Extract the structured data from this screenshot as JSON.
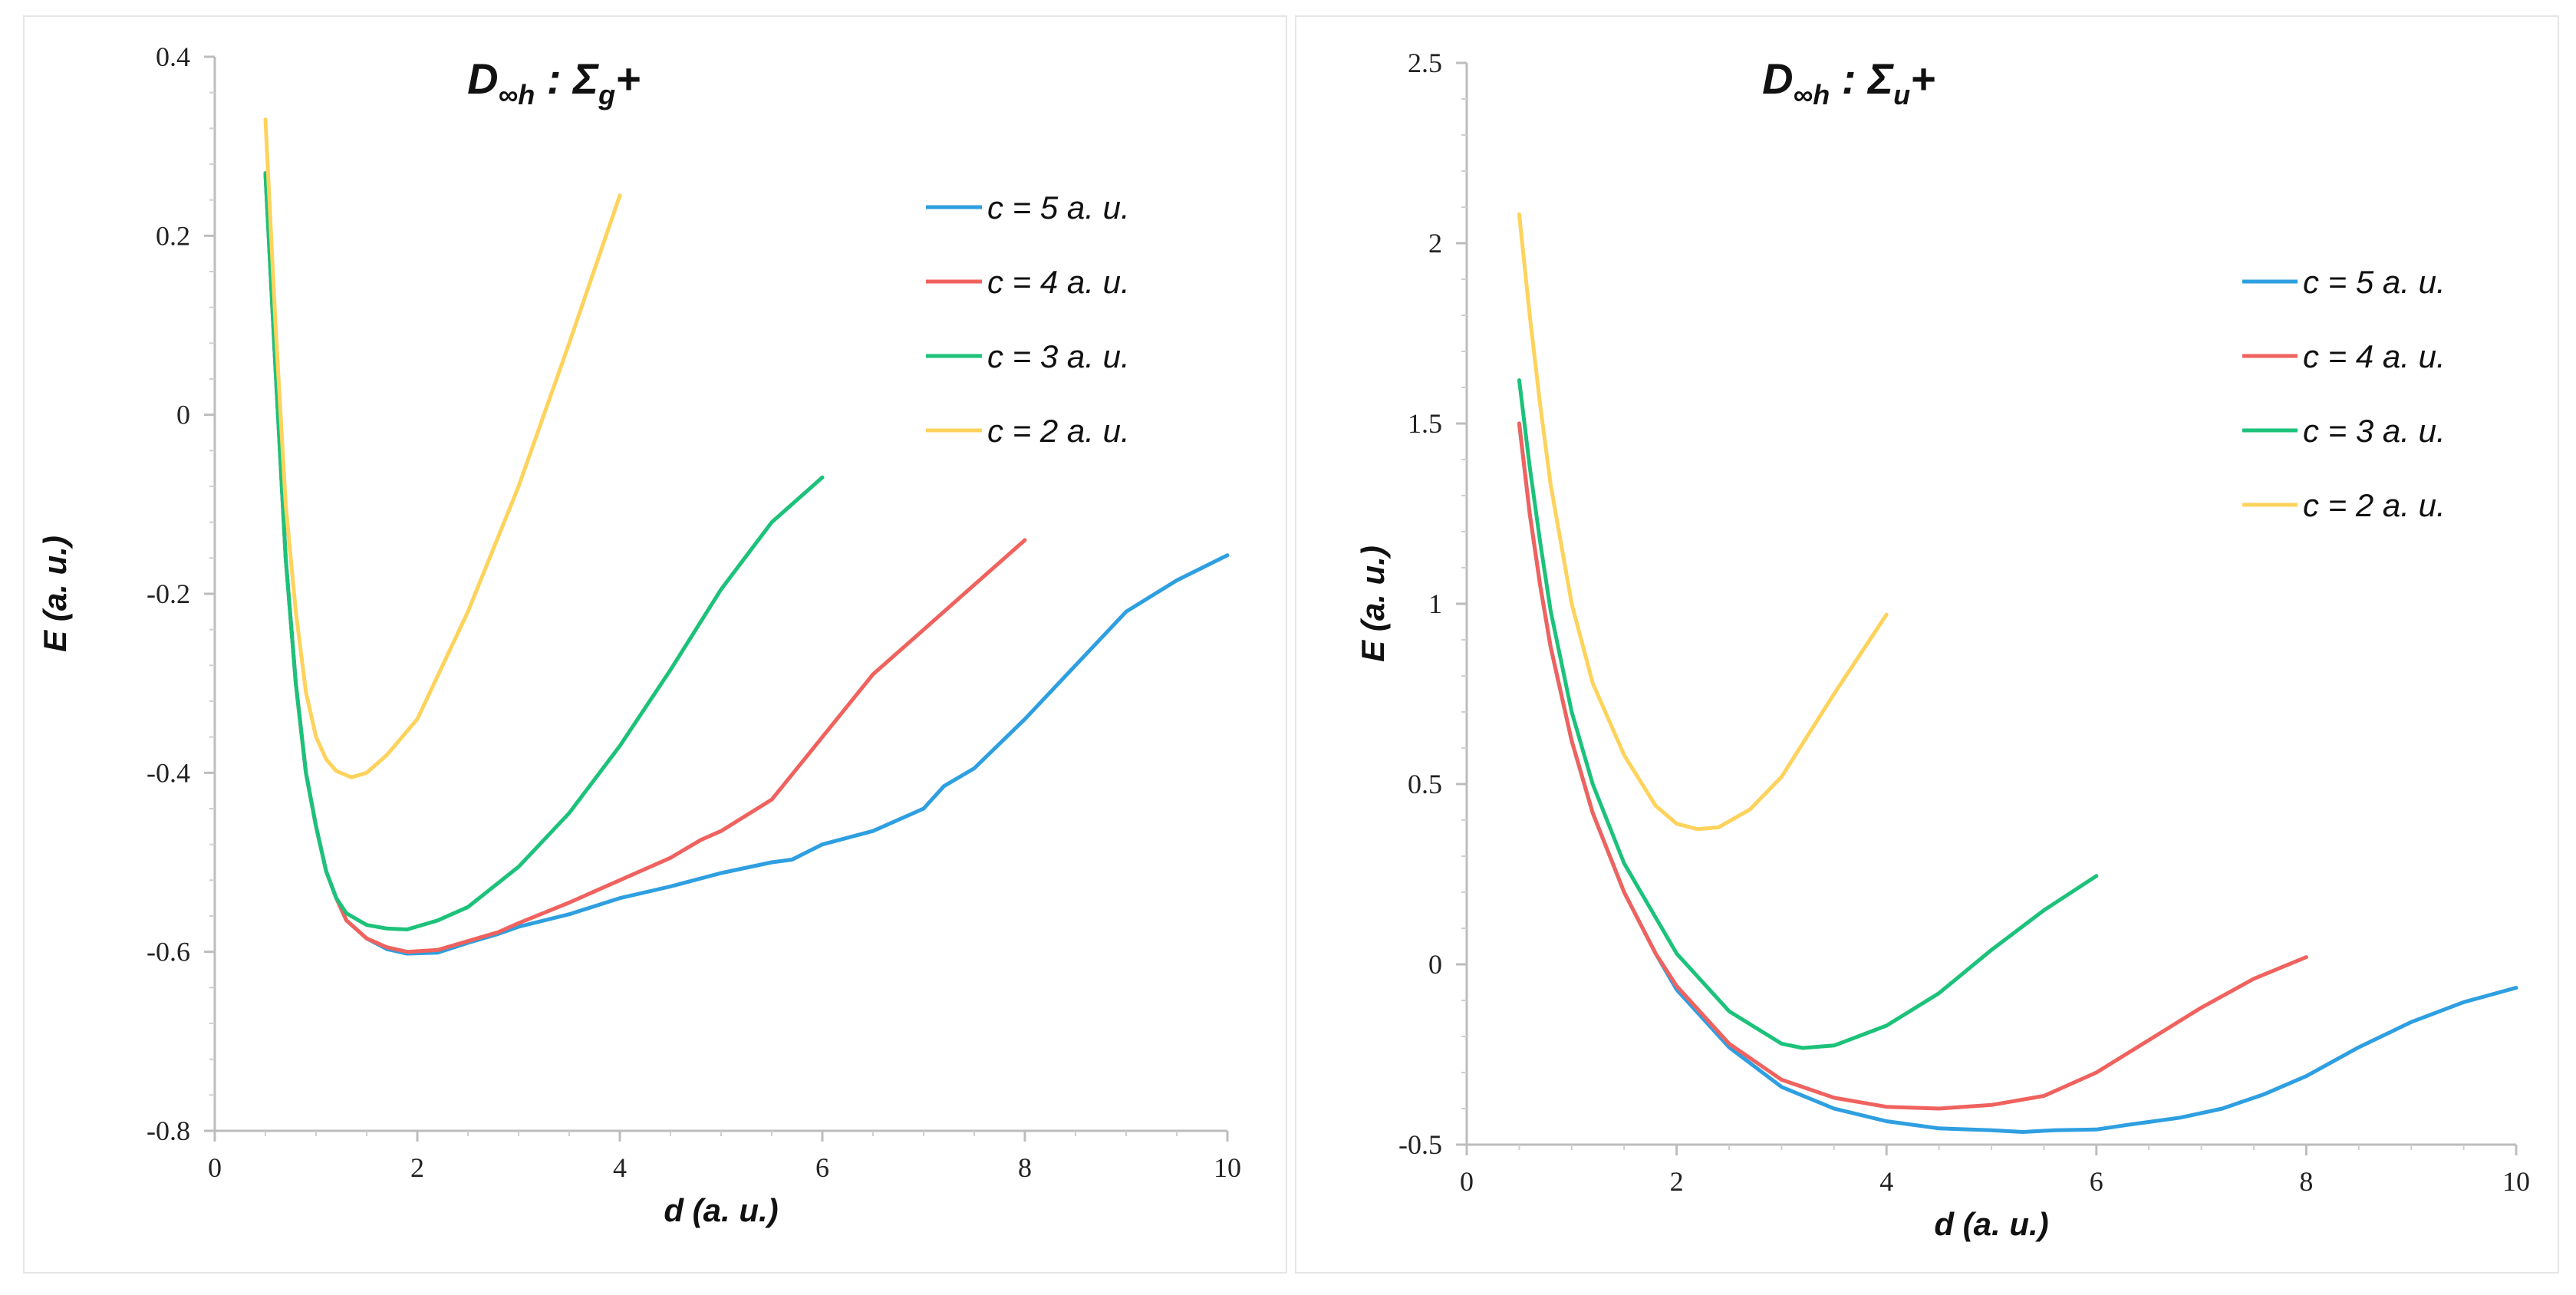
{
  "chart_data": [
    {
      "type": "line",
      "title": {
        "main": "D",
        "sub": "∞h",
        "mid": " : Σ",
        "sub2": "g",
        "end": "+"
      },
      "xlabel": "d (a. u.)",
      "ylabel": "E (a. u.)",
      "xlim": [
        0,
        10
      ],
      "ylim": [
        -0.8,
        0.4
      ],
      "xticks": [
        0,
        2,
        4,
        6,
        8,
        10
      ],
      "yticks": [
        -0.8,
        -0.6,
        -0.4,
        -0.2,
        0,
        0.2,
        0.4
      ],
      "ytick_labels": [
        "-0.8",
        "-0.6",
        "-0.4",
        "-0.2",
        "0",
        "0.2",
        "0.4"
      ],
      "legend_position": "top-right",
      "series": [
        {
          "name": "c = 5 a. u.",
          "color": "#2e9fe0",
          "points": [
            [
              0.5,
              0.27
            ],
            [
              0.6,
              0.05
            ],
            [
              0.7,
              -0.16
            ],
            [
              0.8,
              -0.3
            ],
            [
              0.9,
              -0.4
            ],
            [
              1.0,
              -0.46
            ],
            [
              1.1,
              -0.51
            ],
            [
              1.2,
              -0.54
            ],
            [
              1.3,
              -0.565
            ],
            [
              1.5,
              -0.585
            ],
            [
              1.7,
              -0.597
            ],
            [
              1.9,
              -0.602
            ],
            [
              2.2,
              -0.601
            ],
            [
              2.5,
              -0.59
            ],
            [
              2.8,
              -0.58
            ],
            [
              3.0,
              -0.572
            ],
            [
              3.5,
              -0.558
            ],
            [
              4.0,
              -0.54
            ],
            [
              4.5,
              -0.527
            ],
            [
              5.0,
              -0.512
            ],
            [
              5.5,
              -0.5
            ],
            [
              5.7,
              -0.497
            ],
            [
              6.0,
              -0.48
            ],
            [
              6.5,
              -0.465
            ],
            [
              7.0,
              -0.44
            ],
            [
              7.2,
              -0.415
            ],
            [
              7.5,
              -0.395
            ],
            [
              8.0,
              -0.34
            ],
            [
              8.5,
              -0.28
            ],
            [
              9.0,
              -0.22
            ],
            [
              9.5,
              -0.185
            ],
            [
              10.0,
              -0.157
            ]
          ]
        },
        {
          "name": "c = 4 a. u.",
          "color": "#f0625e",
          "points": [
            [
              0.5,
              0.27
            ],
            [
              0.6,
              0.05
            ],
            [
              0.7,
              -0.16
            ],
            [
              0.8,
              -0.3
            ],
            [
              0.9,
              -0.4
            ],
            [
              1.0,
              -0.46
            ],
            [
              1.1,
              -0.51
            ],
            [
              1.2,
              -0.54
            ],
            [
              1.3,
              -0.565
            ],
            [
              1.5,
              -0.585
            ],
            [
              1.7,
              -0.595
            ],
            [
              1.9,
              -0.6
            ],
            [
              2.2,
              -0.598
            ],
            [
              2.5,
              -0.588
            ],
            [
              2.8,
              -0.578
            ],
            [
              3.0,
              -0.568
            ],
            [
              3.5,
              -0.545
            ],
            [
              4.0,
              -0.52
            ],
            [
              4.5,
              -0.495
            ],
            [
              4.8,
              -0.475
            ],
            [
              5.0,
              -0.465
            ],
            [
              5.5,
              -0.43
            ],
            [
              6.0,
              -0.36
            ],
            [
              6.5,
              -0.29
            ],
            [
              7.0,
              -0.24
            ],
            [
              7.5,
              -0.19
            ],
            [
              8.0,
              -0.14
            ]
          ]
        },
        {
          "name": "c = 3 a. u.",
          "color": "#1cc27a",
          "points": [
            [
              0.5,
              0.27
            ],
            [
              0.6,
              0.05
            ],
            [
              0.7,
              -0.16
            ],
            [
              0.8,
              -0.3
            ],
            [
              0.9,
              -0.4
            ],
            [
              1.0,
              -0.46
            ],
            [
              1.1,
              -0.51
            ],
            [
              1.2,
              -0.54
            ],
            [
              1.3,
              -0.557
            ],
            [
              1.5,
              -0.57
            ],
            [
              1.7,
              -0.574
            ],
            [
              1.9,
              -0.575
            ],
            [
              2.2,
              -0.565
            ],
            [
              2.5,
              -0.55
            ],
            [
              3.0,
              -0.505
            ],
            [
              3.5,
              -0.445
            ],
            [
              4.0,
              -0.37
            ],
            [
              4.5,
              -0.285
            ],
            [
              5.0,
              -0.195
            ],
            [
              5.5,
              -0.12
            ],
            [
              6.0,
              -0.07
            ]
          ]
        },
        {
          "name": "c = 2 a. u.",
          "color": "#fdd35c",
          "points": [
            [
              0.5,
              0.33
            ],
            [
              0.6,
              0.1
            ],
            [
              0.7,
              -0.1
            ],
            [
              0.8,
              -0.22
            ],
            [
              0.9,
              -0.31
            ],
            [
              1.0,
              -0.36
            ],
            [
              1.1,
              -0.385
            ],
            [
              1.2,
              -0.398
            ],
            [
              1.35,
              -0.405
            ],
            [
              1.5,
              -0.4
            ],
            [
              1.7,
              -0.38
            ],
            [
              2.0,
              -0.34
            ],
            [
              2.5,
              -0.22
            ],
            [
              3.0,
              -0.08
            ],
            [
              3.5,
              0.08
            ],
            [
              4.0,
              0.245
            ]
          ]
        }
      ]
    },
    {
      "type": "line",
      "title": {
        "main": "D",
        "sub": "∞h",
        "mid": " : Σ",
        "sub2": "u",
        "end": "+"
      },
      "xlabel": "d (a. u.)",
      "ylabel": "E (a. u.)",
      "xlim": [
        0,
        10
      ],
      "ylim": [
        -0.5,
        2.5
      ],
      "xticks": [
        0,
        2,
        4,
        6,
        8,
        10
      ],
      "yticks": [
        -0.5,
        0,
        0.5,
        1,
        1.5,
        2,
        2.5
      ],
      "ytick_labels": [
        "-0.5",
        "0",
        "0.5",
        "1",
        "1.5",
        "2",
        "2.5"
      ],
      "legend_position": "top-right",
      "series": [
        {
          "name": "c = 5 a. u.",
          "color": "#2e9fe0",
          "points": [
            [
              0.5,
              1.5
            ],
            [
              0.6,
              1.25
            ],
            [
              0.7,
              1.05
            ],
            [
              0.8,
              0.88
            ],
            [
              1.0,
              0.62
            ],
            [
              1.2,
              0.42
            ],
            [
              1.5,
              0.2
            ],
            [
              1.8,
              0.03
            ],
            [
              2.0,
              -0.07
            ],
            [
              2.5,
              -0.23
            ],
            [
              3.0,
              -0.34
            ],
            [
              3.5,
              -0.4
            ],
            [
              4.0,
              -0.435
            ],
            [
              4.5,
              -0.455
            ],
            [
              5.0,
              -0.46
            ],
            [
              5.3,
              -0.465
            ],
            [
              5.6,
              -0.46
            ],
            [
              6.0,
              -0.458
            ],
            [
              6.3,
              -0.445
            ],
            [
              6.8,
              -0.425
            ],
            [
              7.2,
              -0.4
            ],
            [
              7.6,
              -0.36
            ],
            [
              8.0,
              -0.31
            ],
            [
              8.5,
              -0.23
            ],
            [
              9.0,
              -0.16
            ],
            [
              9.5,
              -0.105
            ],
            [
              10.0,
              -0.065
            ]
          ]
        },
        {
          "name": "c = 4 a. u.",
          "color": "#f0625e",
          "points": [
            [
              0.5,
              1.5
            ],
            [
              0.6,
              1.25
            ],
            [
              0.7,
              1.05
            ],
            [
              0.8,
              0.88
            ],
            [
              1.0,
              0.62
            ],
            [
              1.2,
              0.42
            ],
            [
              1.5,
              0.2
            ],
            [
              1.8,
              0.03
            ],
            [
              2.0,
              -0.06
            ],
            [
              2.5,
              -0.22
            ],
            [
              3.0,
              -0.32
            ],
            [
              3.5,
              -0.37
            ],
            [
              4.0,
              -0.395
            ],
            [
              4.5,
              -0.4
            ],
            [
              5.0,
              -0.39
            ],
            [
              5.5,
              -0.365
            ],
            [
              6.0,
              -0.3
            ],
            [
              6.5,
              -0.21
            ],
            [
              7.0,
              -0.12
            ],
            [
              7.5,
              -0.04
            ],
            [
              8.0,
              0.02
            ]
          ]
        },
        {
          "name": "c = 3 a. u.",
          "color": "#1cc27a",
          "points": [
            [
              0.5,
              1.62
            ],
            [
              0.6,
              1.38
            ],
            [
              0.7,
              1.17
            ],
            [
              0.8,
              0.98
            ],
            [
              1.0,
              0.7
            ],
            [
              1.2,
              0.5
            ],
            [
              1.5,
              0.28
            ],
            [
              2.0,
              0.03
            ],
            [
              2.5,
              -0.13
            ],
            [
              3.0,
              -0.22
            ],
            [
              3.2,
              -0.232
            ],
            [
              3.5,
              -0.225
            ],
            [
              4.0,
              -0.17
            ],
            [
              4.5,
              -0.08
            ],
            [
              5.0,
              0.04
            ],
            [
              5.5,
              0.15
            ],
            [
              6.0,
              0.245
            ]
          ]
        },
        {
          "name": "c = 2 a. u.",
          "color": "#fdd35c",
          "points": [
            [
              0.5,
              2.08
            ],
            [
              0.6,
              1.8
            ],
            [
              0.7,
              1.55
            ],
            [
              0.8,
              1.33
            ],
            [
              1.0,
              1.0
            ],
            [
              1.2,
              0.78
            ],
            [
              1.5,
              0.58
            ],
            [
              1.8,
              0.44
            ],
            [
              2.0,
              0.39
            ],
            [
              2.2,
              0.375
            ],
            [
              2.4,
              0.38
            ],
            [
              2.7,
              0.43
            ],
            [
              3.0,
              0.52
            ],
            [
              3.5,
              0.75
            ],
            [
              4.0,
              0.97
            ]
          ]
        }
      ]
    }
  ]
}
